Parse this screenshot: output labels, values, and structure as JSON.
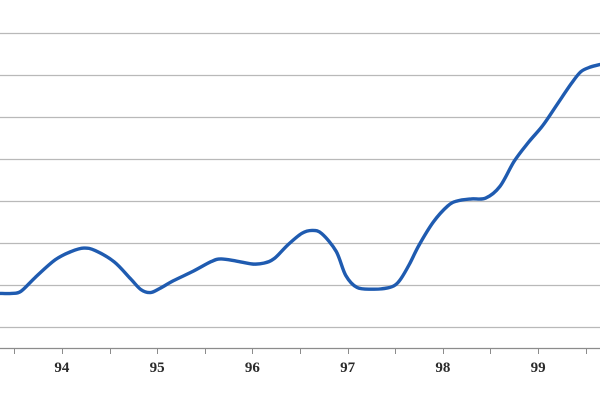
{
  "chart_data": {
    "type": "line",
    "title": "",
    "xlabel": "",
    "ylabel": "",
    "xlim": [
      93.35,
      99.65
    ],
    "ylim": [
      0,
      7.5
    ],
    "grid": true,
    "legend": "none",
    "x_tick_labels": [
      "94",
      "95",
      "96",
      "97",
      "98",
      "99"
    ],
    "x_tick_values": [
      94,
      95,
      96,
      97,
      98,
      99
    ],
    "x_minor_tick_values": [
      93.5,
      94.5,
      95.5,
      96.5,
      97.5,
      98.5,
      99.5
    ],
    "y_gridlines": [
      0.5,
      1.5,
      2.5,
      3.5,
      4.5,
      5.5,
      6.5,
      7.5
    ],
    "colors": {
      "line": "#1f5bb0",
      "grid": "#b9b9b9",
      "axis": "#8c8c8c"
    },
    "series": [
      {
        "x": [
          93.35,
          93.47,
          93.57,
          93.72,
          93.93,
          94.1,
          94.23,
          94.35,
          94.55,
          94.72,
          94.83,
          94.93,
          95.03,
          95.17,
          95.38,
          95.57,
          95.67,
          95.83,
          96.0,
          96.12,
          96.23,
          96.37,
          96.52,
          96.63,
          96.73,
          96.88,
          96.98,
          97.1,
          97.27,
          97.42,
          97.5,
          97.56,
          97.65,
          97.75,
          97.9,
          98.05,
          98.15,
          98.3,
          98.45,
          98.6,
          98.75,
          98.9,
          99.05,
          99.2,
          99.35,
          99.45,
          99.55,
          99.65
        ],
        "y": [
          1.3,
          1.3,
          1.35,
          1.68,
          2.1,
          2.3,
          2.38,
          2.32,
          2.05,
          1.65,
          1.39,
          1.32,
          1.42,
          1.6,
          1.83,
          2.06,
          2.12,
          2.07,
          2.0,
          2.02,
          2.13,
          2.45,
          2.73,
          2.8,
          2.72,
          2.3,
          1.73,
          1.44,
          1.4,
          1.43,
          1.5,
          1.65,
          2.0,
          2.45,
          3.0,
          3.38,
          3.5,
          3.55,
          3.57,
          3.85,
          4.45,
          4.9,
          5.3,
          5.8,
          6.3,
          6.58,
          6.69,
          6.75
        ]
      }
    ]
  }
}
